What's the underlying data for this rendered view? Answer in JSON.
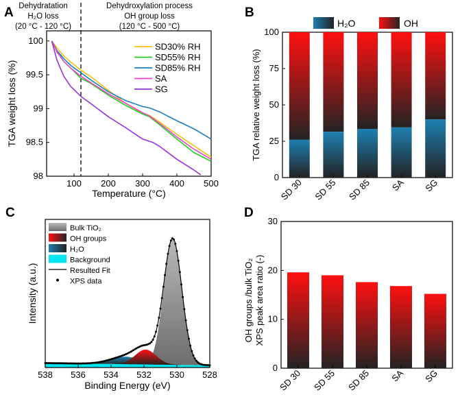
{
  "colors": {
    "water": "#1e7fb0",
    "oh": "#ff1010",
    "dark": "#232323",
    "bulk": "#a0a0a0",
    "background": "#00e5f0",
    "sd30": "#f5c20a",
    "sd55": "#22cc22",
    "sd85": "#1a7fc4",
    "sa": "#ee44cc",
    "sg": "#9a2fe0"
  },
  "chart_data": [
    {
      "panel": "A",
      "type": "line",
      "xlabel": "Temperature (°C)",
      "ylabel": "TGA weight loss (%)",
      "xlim": [
        20,
        500
      ],
      "ylim": [
        98,
        100.15
      ],
      "xticks": [
        100,
        200,
        300,
        400,
        500
      ],
      "xticklabels": [
        "100",
        "200",
        "300",
        "400",
        "500"
      ],
      "yticks": [
        98,
        98.5,
        99,
        99.5,
        100
      ],
      "yticklabels": [
        "98",
        "98.5",
        "99",
        "99.5",
        "100"
      ],
      "divider_x": 120,
      "annotations": {
        "left": [
          "Dehydratation",
          "H₂O loss",
          "(20 °C - 120 °C)"
        ],
        "right": [
          "Dehydroxylation process",
          "OH group loss",
          "(120 °C - 500 °C)"
        ]
      },
      "legend": [
        "SD30% RH",
        "SD55% RH",
        "SD85% RH",
        "SA",
        "SG"
      ],
      "series": [
        {
          "name": "SD30% RH",
          "color": "#f5c20a",
          "x": [
            35,
            50,
            70,
            90,
            120,
            150,
            200,
            250,
            300,
            320,
            350,
            400,
            450,
            500
          ],
          "y": [
            100,
            99.9,
            99.78,
            99.69,
            99.57,
            99.47,
            99.27,
            99.08,
            98.93,
            98.9,
            98.8,
            98.62,
            98.45,
            98.28
          ]
        },
        {
          "name": "SD55% RH",
          "color": "#22cc22",
          "x": [
            35,
            50,
            70,
            90,
            120,
            150,
            200,
            250,
            300,
            320,
            350,
            400,
            450,
            500
          ],
          "y": [
            100,
            99.85,
            99.7,
            99.6,
            99.45,
            99.37,
            99.2,
            99.05,
            98.92,
            98.88,
            98.76,
            98.55,
            98.35,
            98.22
          ]
        },
        {
          "name": "SD85% RH",
          "color": "#1a7fc4",
          "x": [
            35,
            50,
            70,
            90,
            120,
            150,
            200,
            250,
            300,
            320,
            350,
            400,
            450,
            500
          ],
          "y": [
            100,
            99.86,
            99.74,
            99.64,
            99.53,
            99.42,
            99.25,
            99.12,
            99.03,
            99.01,
            98.95,
            98.82,
            98.7,
            98.55
          ]
        },
        {
          "name": "SA",
          "color": "#ee44cc",
          "x": [
            35,
            50,
            70,
            90,
            120,
            150,
            200,
            250,
            300,
            320,
            350,
            400,
            450,
            500
          ],
          "y": [
            100,
            99.84,
            99.7,
            99.6,
            99.48,
            99.38,
            99.22,
            99.08,
            98.94,
            98.89,
            98.78,
            98.58,
            98.4,
            98.25
          ]
        },
        {
          "name": "SG",
          "color": "#9a2fe0",
          "x": [
            35,
            50,
            70,
            90,
            120,
            150,
            200,
            250,
            300,
            330,
            350,
            400,
            450,
            470
          ],
          "y": [
            100,
            99.72,
            99.48,
            99.33,
            99.18,
            99.07,
            98.88,
            98.72,
            98.55,
            98.5,
            98.44,
            98.25,
            98.09,
            98.02
          ]
        }
      ]
    },
    {
      "panel": "B",
      "type": "bar",
      "stacked": true,
      "ylabel": "TGA relative weight loss (%)",
      "ylim": [
        0,
        100
      ],
      "yticks": [
        0,
        25,
        50,
        75,
        100
      ],
      "yticklabels": [
        "0",
        "25",
        "50",
        "75",
        "100"
      ],
      "categories": [
        "SD 30",
        "SD 55",
        "SD 85",
        "SA",
        "SG"
      ],
      "series": [
        {
          "name": "H₂O",
          "values": [
            26,
            31.5,
            33.5,
            34.5,
            40
          ]
        },
        {
          "name": "OH",
          "values": [
            74,
            68.5,
            66.5,
            65.5,
            60
          ]
        }
      ],
      "legend": [
        "H₂O",
        "OH"
      ],
      "legend_position": "top"
    },
    {
      "panel": "C",
      "type": "area",
      "xlabel": "Binding Energy (eV)",
      "ylabel": "Intensity (a.u.)",
      "xlim": [
        538,
        528
      ],
      "xticks": [
        538,
        536,
        534,
        532,
        530,
        528
      ],
      "xticklabels": [
        "538",
        "536",
        "534",
        "532",
        "530",
        "528"
      ],
      "legend": [
        "Bulk TiO₂",
        "OH groups",
        "H₂O",
        "Background",
        "Resulted Fit",
        "XPS data"
      ],
      "legend_position": "top-left",
      "components": [
        {
          "name": "Bulk TiO₂",
          "center": 530.25,
          "fwhm": 1.3,
          "height": 0.85
        },
        {
          "name": "OH groups",
          "center": 531.9,
          "fwhm": 1.5,
          "height": 0.1
        },
        {
          "name": "H₂O",
          "center": 533.1,
          "fwhm": 2.2,
          "height": 0.05
        },
        {
          "name": "Background",
          "start": 0.03,
          "end": 0.015
        }
      ]
    },
    {
      "panel": "D",
      "type": "bar",
      "ylabel": "OH groups /bulk TiO₂ XPS peak area ratio (-)",
      "ylim": [
        0,
        30
      ],
      "yticks": [
        0,
        10,
        20,
        30
      ],
      "yticklabels": [
        "0",
        "10",
        "20",
        "30"
      ],
      "categories": [
        "SD 30",
        "SD 55",
        "SD 85",
        "SA",
        "SG"
      ],
      "values": [
        19.6,
        19.0,
        17.6,
        16.8,
        15.2
      ]
    }
  ],
  "labels": {
    "panel_a": "A",
    "panel_b": "B",
    "panel_c": "C",
    "panel_d": "D",
    "d_ylabel_line1": "OH groups /bulk TiO₂",
    "d_ylabel_line2": "XPS peak area ratio (-)"
  }
}
